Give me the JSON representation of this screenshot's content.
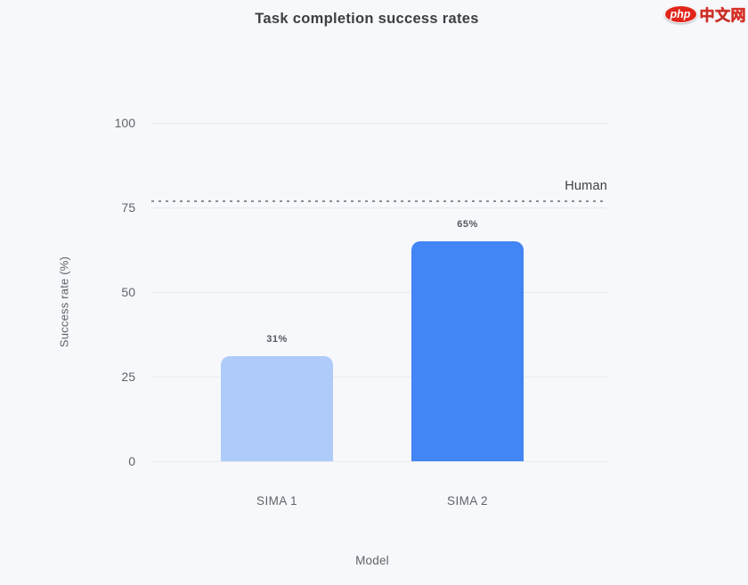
{
  "logo": {
    "badge_text": "php",
    "site_text": "中文网",
    "badge_color": "#e1251b"
  },
  "chart_data": {
    "type": "bar",
    "title": "Task completion success rates",
    "xlabel": "Model",
    "ylabel": "Success rate (%)",
    "categories": [
      "SIMA 1",
      "SIMA 2"
    ],
    "values": [
      31,
      65
    ],
    "value_labels": [
      "31%",
      "65%"
    ],
    "bar_colors": [
      "#aecbfa",
      "#4285f4"
    ],
    "ylim": [
      0,
      100
    ],
    "yticks": [
      0,
      25,
      50,
      75,
      100
    ],
    "grid": "horizontal",
    "legend": "none",
    "reference_line": {
      "label": "Human",
      "value": 77,
      "style": "dashed"
    }
  }
}
